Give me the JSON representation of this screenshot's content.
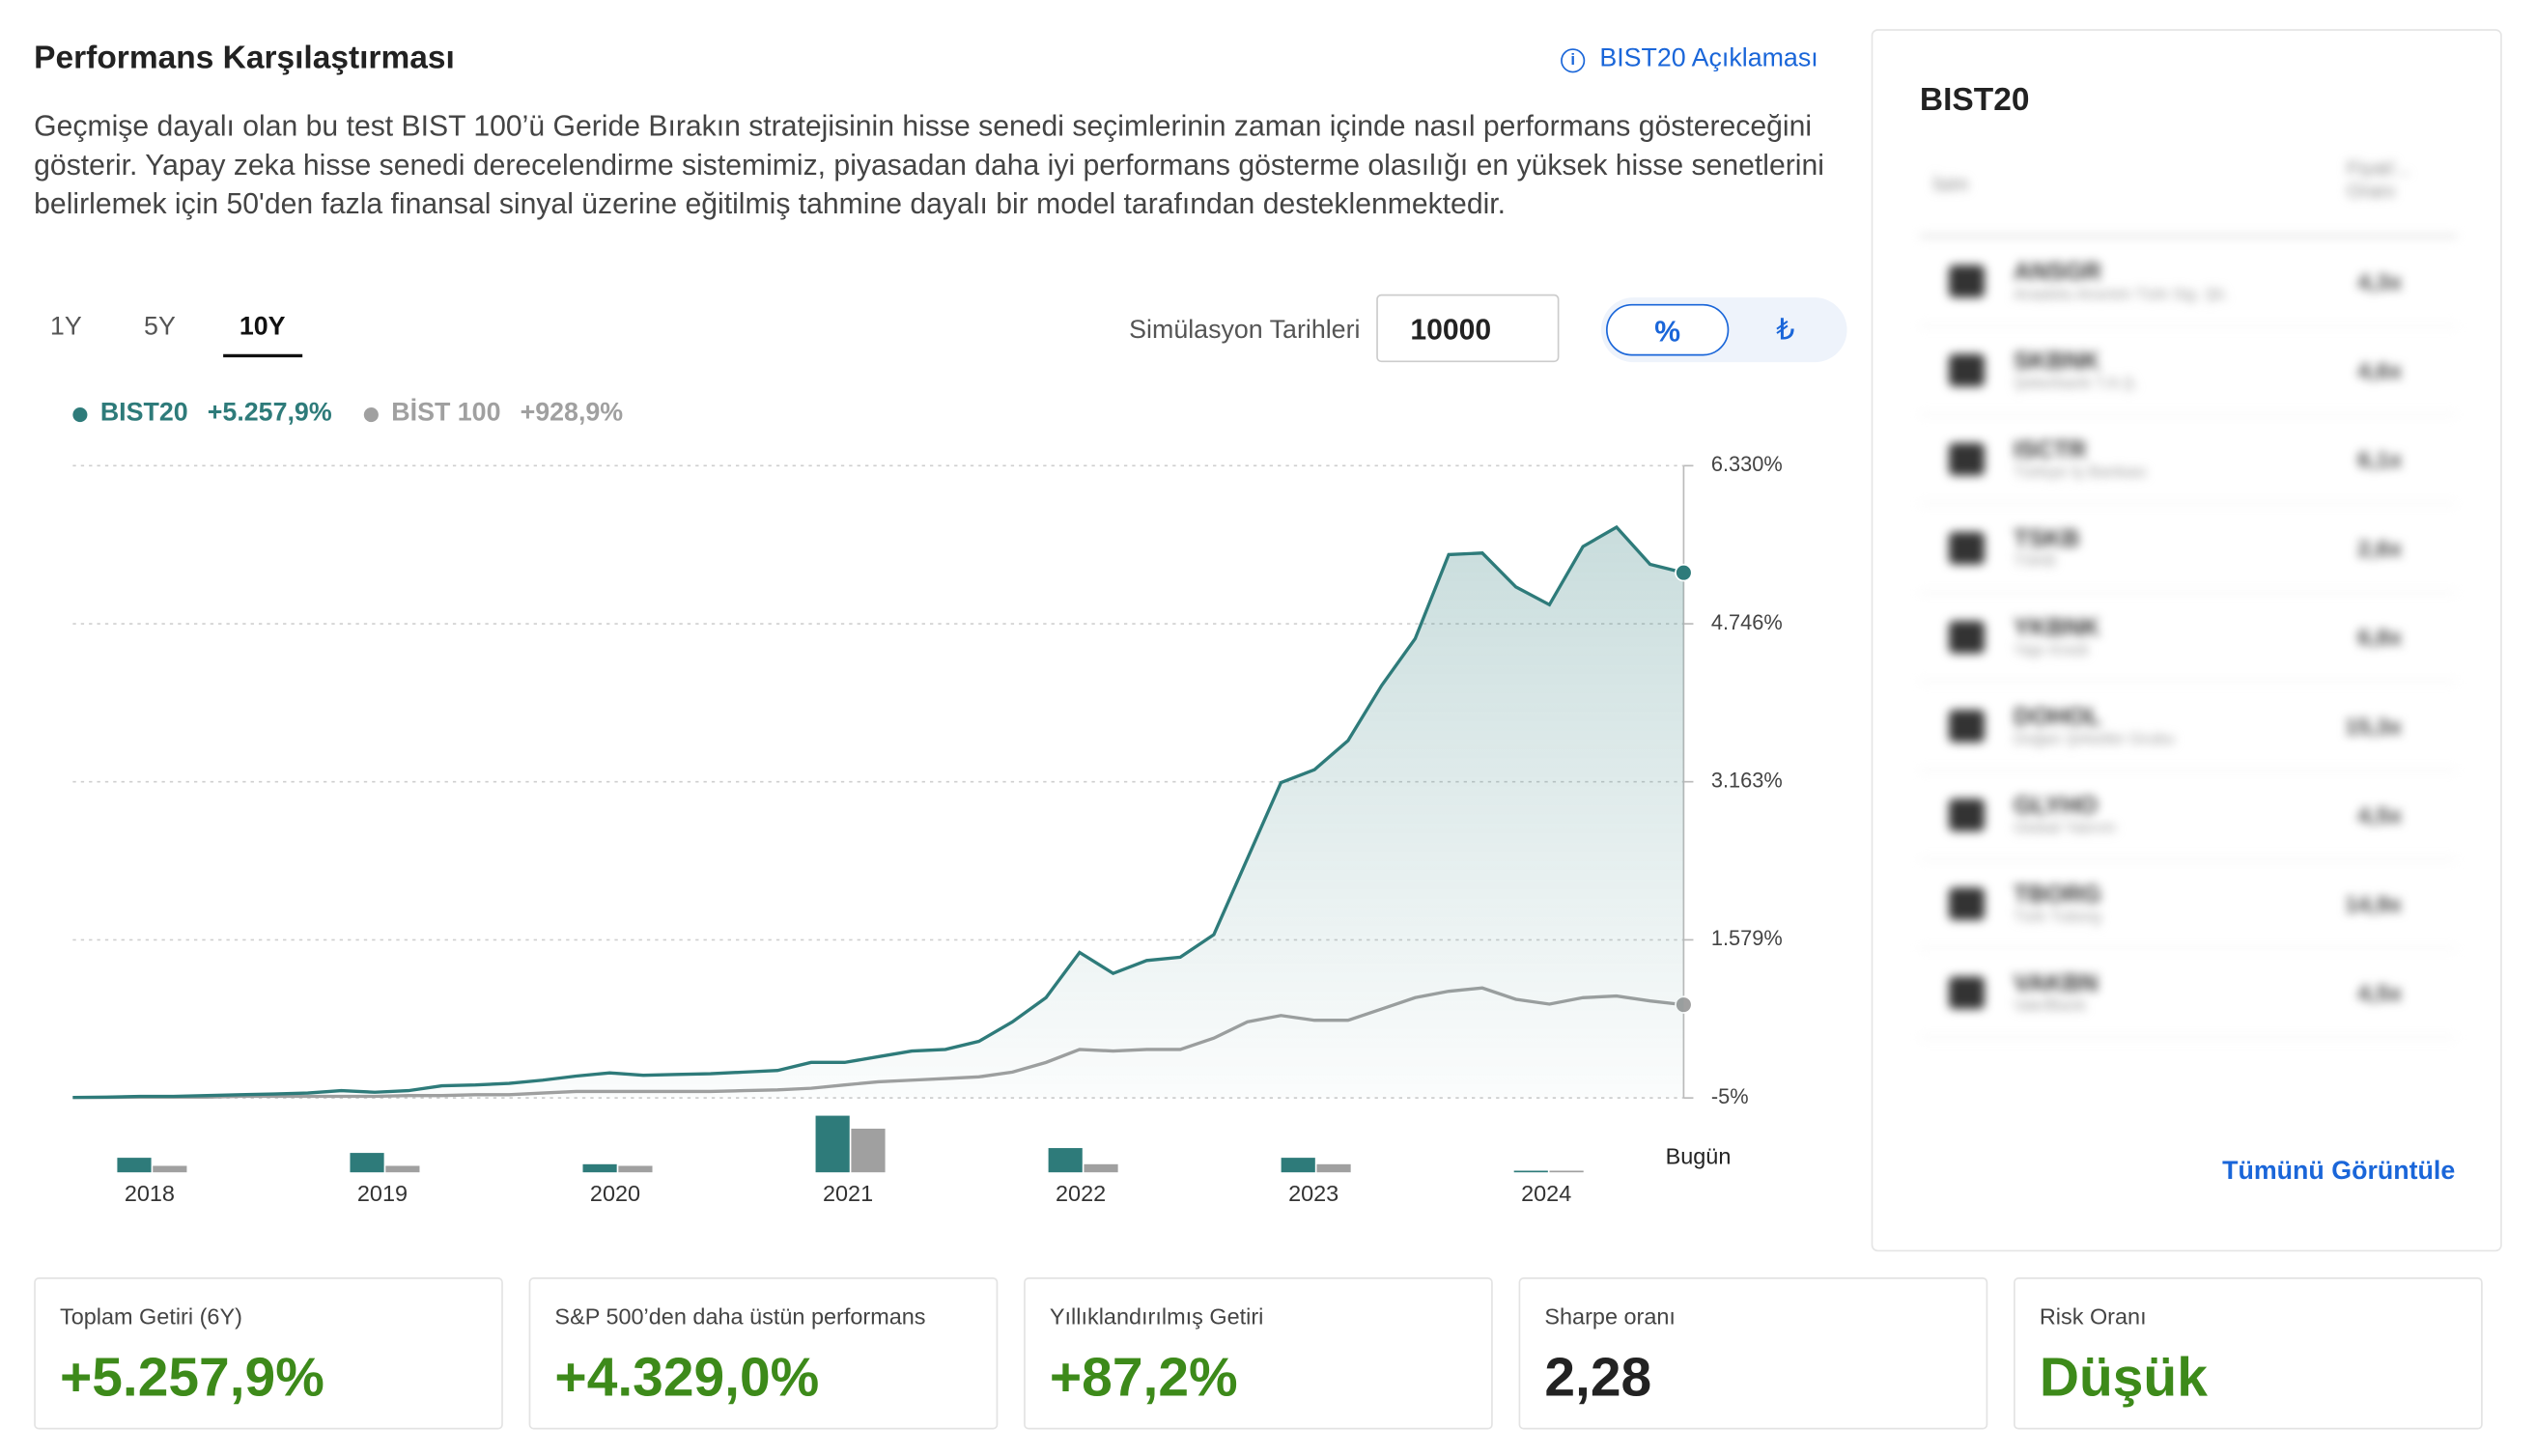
{
  "header": {
    "title": "Performans Karşılaştırması",
    "link": "BIST20 Açıklaması",
    "description": "Geçmişe dayalı olan bu test BIST 100’ü Geride Bırakın stratejisinin hisse senedi seçimlerinin zaman içinde nasıl performans göstereceğini gösterir. Yapay zeka hisse senedi derecelendirme sistemimiz, piyasadan daha iyi performans gösterme olasılığı en yüksek hisse senetlerini belirlemek için 50'den fazla finansal sinyal üzerine eğitilmiş tahmine dayalı bir model tarafından desteklenmektedir."
  },
  "controls": {
    "tabs": [
      "1Y",
      "5Y",
      "10Y"
    ],
    "active_tab": 2,
    "simulation_label": "Simülasyon Tarihleri",
    "simulation_value": "10000",
    "toggle": [
      "%",
      "₺"
    ],
    "active_toggle": 0
  },
  "chart_data": {
    "type": "line",
    "xlim": [
      2017.67,
      2024.59
    ],
    "xticks": [
      2018,
      2019,
      2020,
      2021,
      2022,
      2023,
      2024
    ],
    "end_label": "Bugün",
    "ylim": [
      -5,
      6330
    ],
    "yticks": [
      {
        "value": -5,
        "label": "-5%"
      },
      {
        "value": 1579,
        "label": "1.579%"
      },
      {
        "value": 3163,
        "label": "3.163%"
      },
      {
        "value": 4746,
        "label": "4.746%"
      },
      {
        "value": 6330,
        "label": "6.330%"
      }
    ],
    "grid": true,
    "series": [
      {
        "name": "BIST20",
        "color": "#2e7b7a",
        "value_label": "+5.257,9%",
        "area": true,
        "values": [
          0,
          3,
          11,
          11,
          19,
          27,
          35,
          44,
          68,
          52,
          68,
          117,
          125,
          141,
          173,
          214,
          246,
          222,
          230,
          238,
          254,
          270,
          351,
          351,
          408,
          465,
          481,
          562,
          757,
          1000,
          1453,
          1243,
          1372,
          1405,
          1631,
          2393,
          3154,
          3284,
          3576,
          4127,
          4597,
          5439,
          5455,
          5115,
          4937,
          5520,
          5714,
          5342,
          5257.9
        ]
      },
      {
        "name": "BİST 100",
        "color": "#a0a0a0",
        "value_label": "+928,9%",
        "area": false,
        "values": [
          0,
          0,
          3,
          3,
          3,
          11,
          11,
          11,
          11,
          11,
          19,
          19,
          27,
          27,
          44,
          60,
          60,
          60,
          60,
          60,
          68,
          76,
          92,
          125,
          157,
          173,
          189,
          206,
          254,
          351,
          481,
          465,
          481,
          481,
          594,
          757,
          821,
          773,
          773,
          886,
          1000,
          1064,
          1097,
          983,
          935,
          1000,
          1016,
          967,
          928.9
        ]
      }
    ],
    "annual_bars": [
      {
        "name": "BIST20",
        "color": "#2e7b7a",
        "values": [
          9,
          12,
          5,
          35,
          15,
          9,
          1
        ]
      },
      {
        "name": "BİST 100",
        "color": "#a0a0a0",
        "values": [
          4,
          4,
          4,
          27,
          5,
          5,
          1
        ]
      }
    ]
  },
  "cards": [
    {
      "label": "Toplam Getiri (6Y)",
      "value": "+5.257,9%",
      "color": "#3d8a1a"
    },
    {
      "label": "S&P 500’den daha üstün performans",
      "value": "+4.329,0%",
      "color": "#3d8a1a"
    },
    {
      "label": "Yıllıklandırılmış Getiri",
      "value": "+87,2%",
      "color": "#3d8a1a"
    },
    {
      "label": "Sharpe oranı",
      "value": "2,28",
      "color": "#222222"
    },
    {
      "label": "Risk Oranı",
      "value": "Düşük",
      "color": "#3d8a1a"
    }
  ],
  "sidebar": {
    "title": "BIST20",
    "columns": [
      "İsim",
      "Fiyat/... Oranı"
    ],
    "rows": [
      [
        "ANSGR",
        "Anadolu Anonim Türk Sig. Şti.",
        "4,3x"
      ],
      [
        "SKBNK",
        "Şekerbank T.A.Ş.",
        "4,6x"
      ],
      [
        "ISCTR",
        "Türkiye İş Bankası",
        "6,1x"
      ],
      [
        "TSKB",
        "TSKB",
        "2,6x"
      ],
      [
        "YKBNK",
        "Yapı Kredi",
        "6,8x"
      ],
      [
        "DOHOL",
        "Doğan Şirketler Grubu",
        "15,3x"
      ],
      [
        "GLYHO",
        "Global Yatırım",
        "4,5x"
      ],
      [
        "TBORG",
        "Türk Tuborg",
        "14,9x"
      ],
      [
        "VAKBN",
        "VakıfBank",
        "4,5x"
      ]
    ],
    "view_all": "Tümünü Görüntüle"
  }
}
